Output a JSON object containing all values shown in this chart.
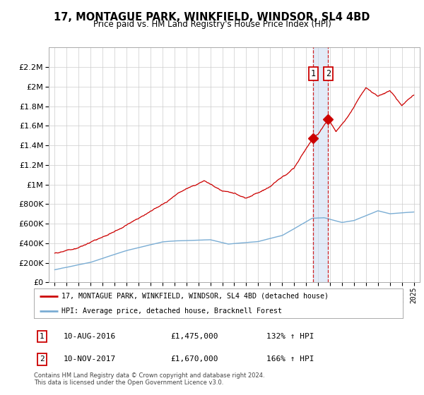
{
  "title": "17, MONTAGUE PARK, WINKFIELD, WINDSOR, SL4 4BD",
  "subtitle": "Price paid vs. HM Land Registry's House Price Index (HPI)",
  "hpi_label": "HPI: Average price, detached house, Bracknell Forest",
  "price_label": "17, MONTAGUE PARK, WINKFIELD, WINDSOR, SL4 4BD (detached house)",
  "transaction1_date": "10-AUG-2016",
  "transaction1_price": 1475000,
  "transaction1_hpi": "132% ↑ HPI",
  "transaction2_date": "10-NOV-2017",
  "transaction2_price": 1670000,
  "transaction2_hpi": "166% ↑ HPI",
  "transaction1_x": 2016.6,
  "transaction2_x": 2017.85,
  "footer": "Contains HM Land Registry data © Crown copyright and database right 2024.\nThis data is licensed under the Open Government Licence v3.0.",
  "ylim_min": 0,
  "ylim_max": 2400000,
  "xlim_min": 1994.5,
  "xlim_max": 2025.5,
  "hpi_color": "#7aadd4",
  "price_color": "#cc0000",
  "vline_color": "#cc0000",
  "shade_color": "#c8d8f0",
  "grid_color": "#cccccc",
  "background_color": "#ffffff",
  "plot_bg_color": "#ffffff"
}
